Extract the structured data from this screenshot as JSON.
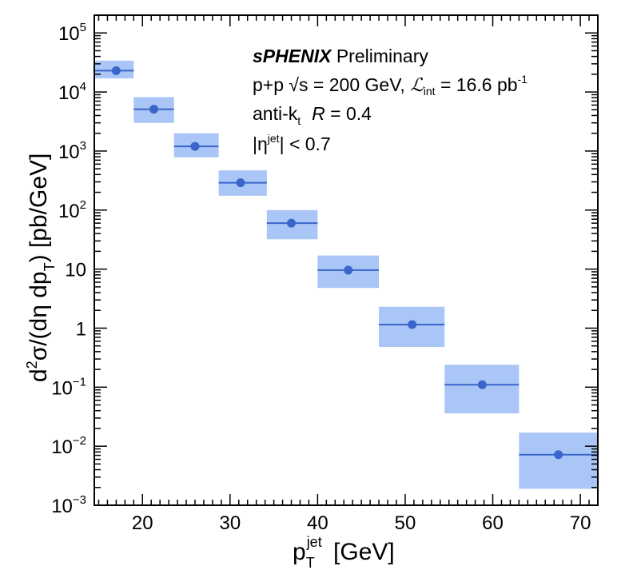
{
  "chart_data": {
    "type": "scatter",
    "xlabel": "p_T^jet [GeV]",
    "ylabel": "d^2σ/(dη dp_T) [pb/GeV]",
    "xlim": [
      14.5,
      72
    ],
    "ylim": [
      0.001,
      200000
    ],
    "log_y": true,
    "grid": false,
    "x_ticks": [
      20,
      30,
      40,
      50,
      60,
      70
    ],
    "x_tick_labels": [
      "20",
      "30",
      "40",
      "50",
      "60",
      "70"
    ],
    "y_ticks": [
      {
        "value": 0.001,
        "base": "10",
        "exp": "−3"
      },
      {
        "value": 0.01,
        "base": "10",
        "exp": "−2"
      },
      {
        "value": 0.1,
        "base": "10",
        "exp": "−1"
      },
      {
        "value": 1,
        "base": "1",
        "exp": ""
      },
      {
        "value": 10,
        "base": "10",
        "exp": ""
      },
      {
        "value": 100,
        "base": "10",
        "exp": "2"
      },
      {
        "value": 1000,
        "base": "10",
        "exp": "3"
      },
      {
        "value": 10000,
        "base": "10",
        "exp": "4"
      },
      {
        "value": 100000,
        "base": "10",
        "exp": "5"
      }
    ],
    "points": [
      {
        "x": 17.0,
        "y": 23000,
        "xlo": 14.5,
        "xhi": 19.0,
        "ylo": 17000,
        "yhi": 34000
      },
      {
        "x": 21.3,
        "y": 5100,
        "xlo": 19.0,
        "xhi": 23.6,
        "ylo": 3000,
        "yhi": 8200
      },
      {
        "x": 26.0,
        "y": 1200,
        "xlo": 23.6,
        "xhi": 28.7,
        "ylo": 780,
        "yhi": 2000
      },
      {
        "x": 31.2,
        "y": 290,
        "xlo": 28.7,
        "xhi": 34.2,
        "ylo": 175,
        "yhi": 470
      },
      {
        "x": 37.0,
        "y": 60,
        "xlo": 34.2,
        "xhi": 40.0,
        "ylo": 32,
        "yhi": 100
      },
      {
        "x": 43.5,
        "y": 9.6,
        "xlo": 40.0,
        "xhi": 47.0,
        "ylo": 4.8,
        "yhi": 17
      },
      {
        "x": 50.8,
        "y": 1.15,
        "xlo": 47.0,
        "xhi": 54.5,
        "ylo": 0.48,
        "yhi": 2.3
      },
      {
        "x": 58.8,
        "y": 0.11,
        "xlo": 54.5,
        "xhi": 63.0,
        "ylo": 0.036,
        "yhi": 0.24
      },
      {
        "x": 67.5,
        "y": 0.0072,
        "xlo": 63.0,
        "xhi": 72.0,
        "ylo": 0.0019,
        "yhi": 0.017
      }
    ],
    "colors": {
      "marker": "#3a65c9",
      "band": "#a9c6f6"
    }
  },
  "annotation": {
    "brand": "sPHENIX",
    "brand_suffix": " Preliminary",
    "line1_a": "p+p ",
    "line1_sqrt": "√s",
    "line1_b": " = 200 GeV, ",
    "line1_L": "ℒ",
    "line1_int": "int",
    "line1_c": " = 16.6 pb",
    "line1_sup": "-1",
    "line2_a": "anti-k",
    "line2_sub": "t",
    "line2_R": "R",
    "line2_b": " = 0.4",
    "line3_a": "|η",
    "line3_sup": "jet",
    "line3_b": "| < 0.7"
  },
  "axis": {
    "x_title_p": "p",
    "x_title_sub": "T",
    "x_title_sup": "jet",
    "x_title_unit": " [GeV]",
    "y_title_a": "d",
    "y_title_sup": "2",
    "y_title_b": "σ/(dη dp",
    "y_title_sub": "T",
    "y_title_c": ") [pb/GeV]"
  }
}
